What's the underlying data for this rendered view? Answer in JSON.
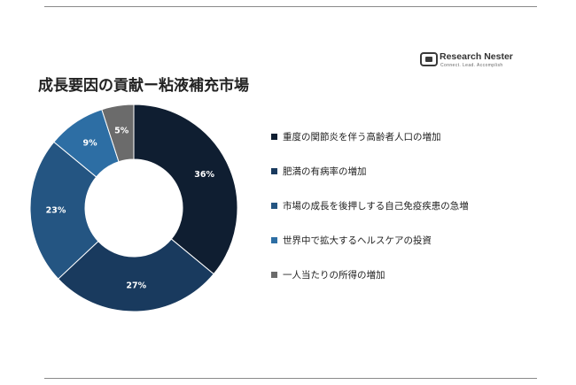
{
  "logo": {
    "name": "Research Nester",
    "tagline": "Connect. Lead. Accomplish"
  },
  "colors": {
    "rule": "#8a8a8a",
    "title": "#222222"
  },
  "chart_data": {
    "type": "pie",
    "donut": true,
    "title": "成長要因の貢献ー粘液補充市場",
    "categories": [
      "重度の関節炎を伴う高齢者人口の増加",
      "肥満の有病率の増加",
      "市場の成長を後押しする自己免疫疾患の急増",
      "世界中で拡大するヘルスケアの投資",
      "一人当たりの所得の増加"
    ],
    "values": [
      36,
      27,
      23,
      9,
      5
    ],
    "labels": [
      "36%",
      "27%",
      "23%",
      "9%",
      "5%"
    ],
    "colors": [
      "#0f1e31",
      "#193a5e",
      "#245582",
      "#2d6ea4",
      "#6b6b6b"
    ],
    "legend_position": "right"
  }
}
